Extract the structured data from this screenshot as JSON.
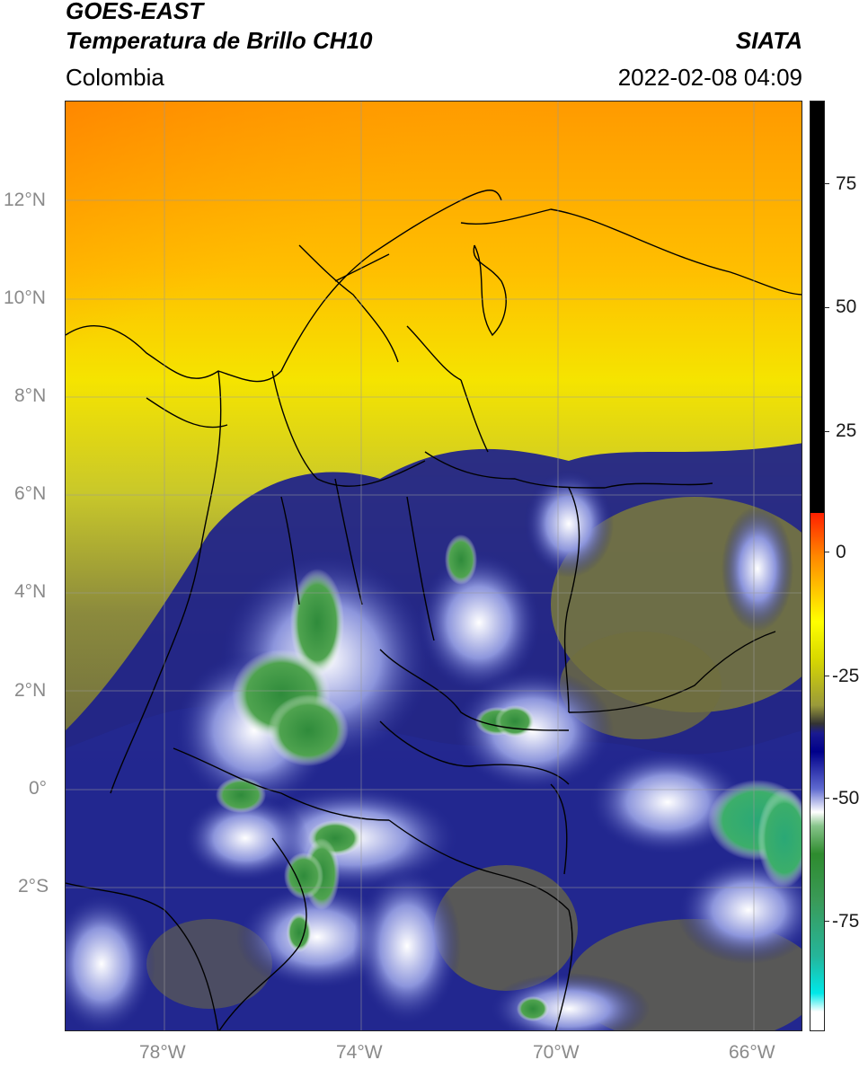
{
  "header": {
    "satellite": "GOES-EAST",
    "product": "Temperatura de Brillo CH10",
    "region": "Colombia",
    "source": "SIATA",
    "datetime": "2022-02-08 04:09"
  },
  "map": {
    "latitude_ticks": [
      "12°N",
      "10°N",
      "8°N",
      "6°N",
      "4°N",
      "2°N",
      "0°",
      "2°S"
    ],
    "longitude_ticks": [
      "78°W",
      "74°W",
      "70°W",
      "66°W"
    ],
    "extent": {
      "lon_min": -80,
      "lon_max": -65,
      "lat_min": -5,
      "lat_max": 14
    }
  },
  "colorbar": {
    "ticks": [
      "75",
      "50",
      "25",
      "0",
      "-25",
      "-50",
      "-75"
    ],
    "range": [
      -95,
      90
    ]
  }
}
